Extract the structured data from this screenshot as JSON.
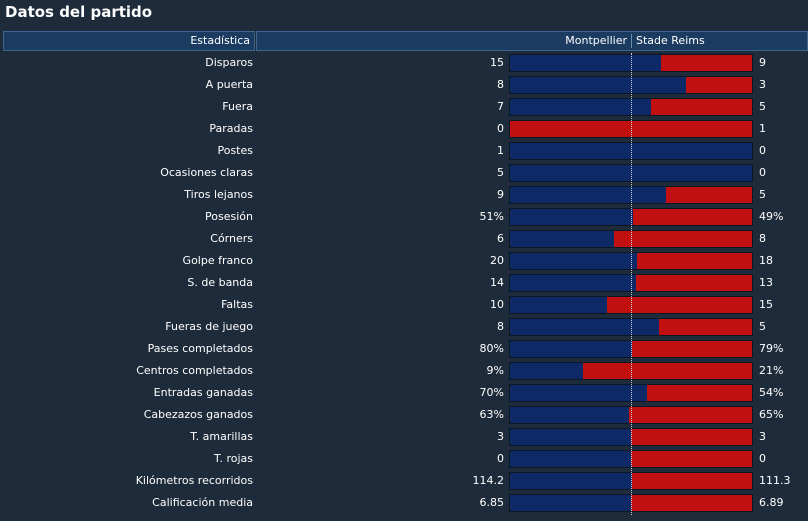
{
  "title": "Datos del partido",
  "header": {
    "stat_col": "Estadística",
    "team1": "Montpellier",
    "team2": "Stade Reims"
  },
  "colors": {
    "team1_bar": "#0d2a66",
    "team2_bar": "#c20f0f",
    "background": "#1e2b3a",
    "header": "#1b3b61"
  },
  "stats": [
    {
      "label": "Disparos",
      "v1": "15",
      "v2": "9",
      "share1": 0.625
    },
    {
      "label": "A puerta",
      "v1": "8",
      "v2": "3",
      "share1": 0.727
    },
    {
      "label": "Fuera",
      "v1": "7",
      "v2": "5",
      "share1": 0.583
    },
    {
      "label": "Paradas",
      "v1": "0",
      "v2": "1",
      "share1": 0.0
    },
    {
      "label": "Postes",
      "v1": "1",
      "v2": "0",
      "share1": 1.0
    },
    {
      "label": "Ocasiones claras",
      "v1": "5",
      "v2": "0",
      "share1": 1.0
    },
    {
      "label": "Tiros lejanos",
      "v1": "9",
      "v2": "5",
      "share1": 0.643
    },
    {
      "label": "Posesión",
      "v1": "51%",
      "v2": "49%",
      "share1": 0.51
    },
    {
      "label": "Córners",
      "v1": "6",
      "v2": "8",
      "share1": 0.429
    },
    {
      "label": "Golpe franco",
      "v1": "20",
      "v2": "18",
      "share1": 0.526
    },
    {
      "label": "S. de banda",
      "v1": "14",
      "v2": "13",
      "share1": 0.519
    },
    {
      "label": "Faltas",
      "v1": "10",
      "v2": "15",
      "share1": 0.4
    },
    {
      "label": "Fueras de juego",
      "v1": "8",
      "v2": "5",
      "share1": 0.615
    },
    {
      "label": "Pases completados",
      "v1": "80%",
      "v2": "79%",
      "share1": 0.503
    },
    {
      "label": "Centros completados",
      "v1": "9%",
      "v2": "21%",
      "share1": 0.3
    },
    {
      "label": "Entradas ganadas",
      "v1": "70%",
      "v2": "54%",
      "share1": 0.565
    },
    {
      "label": "Cabezazos ganados",
      "v1": "63%",
      "v2": "65%",
      "share1": 0.492
    },
    {
      "label": "T. amarillas",
      "v1": "3",
      "v2": "3",
      "share1": 0.5
    },
    {
      "label": "T. rojas",
      "v1": "0",
      "v2": "0",
      "share1": 0.5
    },
    {
      "label": "Kilómetros recorridos",
      "v1": "114.2",
      "v2": "111.3",
      "share1": 0.506
    },
    {
      "label": "Calificación media",
      "v1": "6.85",
      "v2": "6.89",
      "share1": 0.499
    }
  ]
}
